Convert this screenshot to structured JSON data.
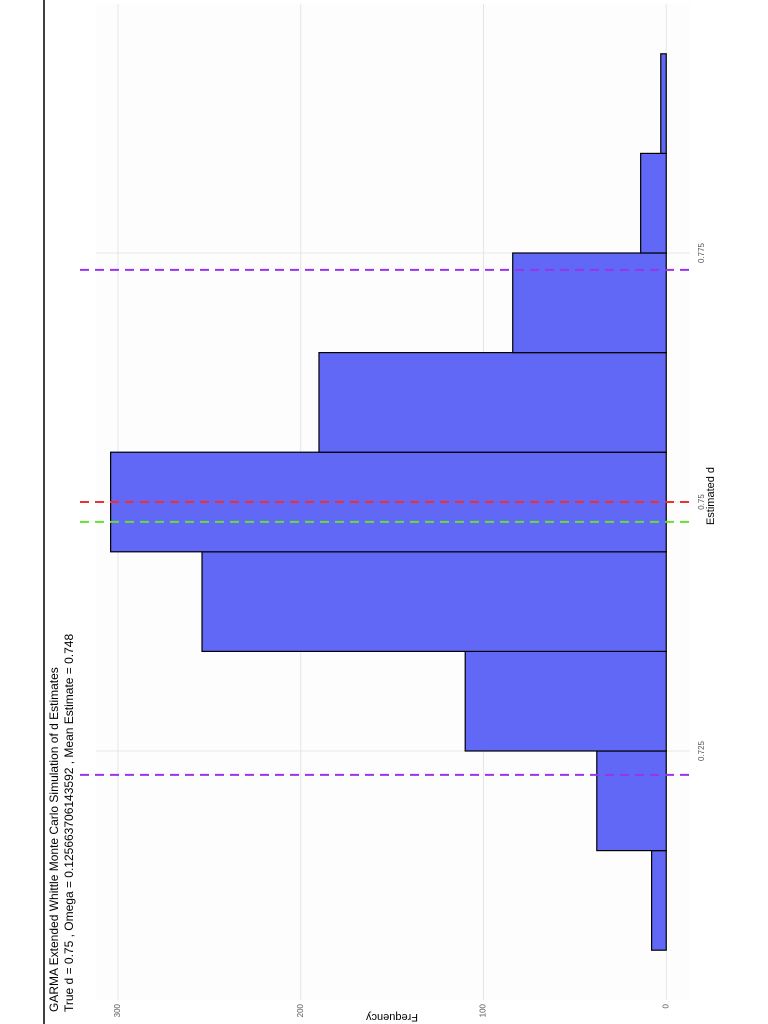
{
  "chart_data": {
    "type": "histogram",
    "title": "GARMA Extended Whittle Monte Carlo Simulation of d Estimates",
    "subtitle": "True d =  0.75 , Omega =  0.125663706143592 , Mean Estimate =  0.748",
    "x_label": "Estimated d",
    "y_label": "Frequency",
    "bins": [
      0.705,
      0.715,
      0.725,
      0.735,
      0.745,
      0.755,
      0.765,
      0.775,
      0.785,
      0.795
    ],
    "values": [
      8,
      38,
      110,
      254,
      304,
      190,
      84,
      14,
      3
    ],
    "color": "#6068f5",
    "vlines": [
      {
        "value": 0.75,
        "color": "#ee3030"
      },
      {
        "value": 0.748,
        "color": "#66dd33"
      },
      {
        "value": 0.7226,
        "color": "#9933ee"
      },
      {
        "value": 0.7733,
        "color": "#9933ee"
      }
    ],
    "xlim": [
      0.7,
      0.8
    ],
    "xticks": [
      0.725,
      0.75,
      0.775
    ],
    "ylim": [
      -13,
      312
    ],
    "yticks": [
      0,
      100,
      200,
      300
    ],
    "grid": true
  }
}
